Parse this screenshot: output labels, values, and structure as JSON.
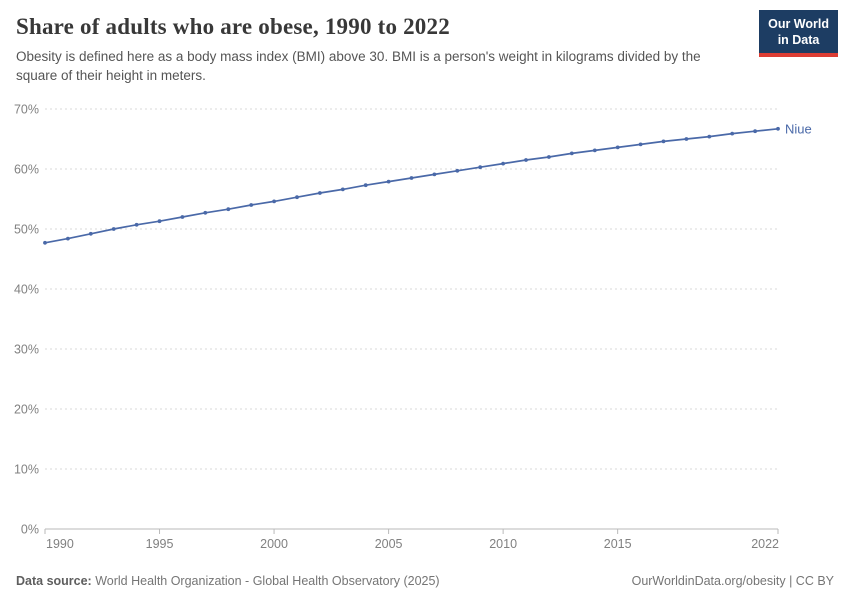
{
  "header": {
    "title": "Share of adults who are obese, 1990 to 2022",
    "subtitle": "Obesity is defined here as a body mass index (BMI) above 30. BMI is a person's weight in kilograms divided by the square of their height in meters."
  },
  "logo": {
    "line1": "Our World",
    "line2": "in Data"
  },
  "chart_data": {
    "type": "line",
    "title": "Share of adults who are obese, 1990 to 2022",
    "x": [
      1990,
      1991,
      1992,
      1993,
      1994,
      1995,
      1996,
      1997,
      1998,
      1999,
      2000,
      2001,
      2002,
      2003,
      2004,
      2005,
      2006,
      2007,
      2008,
      2009,
      2010,
      2011,
      2012,
      2013,
      2014,
      2015,
      2016,
      2017,
      2018,
      2019,
      2020,
      2021,
      2022
    ],
    "series": [
      {
        "name": "Niue",
        "values": [
          47.7,
          48.4,
          49.2,
          50.0,
          50.7,
          51.3,
          52.0,
          52.7,
          53.3,
          54.0,
          54.6,
          55.3,
          56.0,
          56.6,
          57.3,
          57.9,
          58.5,
          59.1,
          59.7,
          60.3,
          60.9,
          61.5,
          62.0,
          62.6,
          63.1,
          63.6,
          64.1,
          64.6,
          65.0,
          65.4,
          65.9,
          66.3,
          66.7
        ]
      }
    ],
    "xlim": [
      1990,
      2022
    ],
    "ylim": [
      0,
      70
    ],
    "y_ticks": [
      {
        "value": 0,
        "label": "0%"
      },
      {
        "value": 10,
        "label": "10%"
      },
      {
        "value": 20,
        "label": "20%"
      },
      {
        "value": 30,
        "label": "30%"
      },
      {
        "value": 40,
        "label": "40%"
      },
      {
        "value": 50,
        "label": "50%"
      },
      {
        "value": 60,
        "label": "60%"
      },
      {
        "value": 70,
        "label": "70%"
      }
    ],
    "x_ticks": [
      {
        "value": 1990,
        "label": "1990"
      },
      {
        "value": 1995,
        "label": "1995"
      },
      {
        "value": 2000,
        "label": "2000"
      },
      {
        "value": 2005,
        "label": "2005"
      },
      {
        "value": 2010,
        "label": "2010"
      },
      {
        "value": 2015,
        "label": "2015"
      },
      {
        "value": 2022,
        "label": "2022"
      }
    ],
    "grid": "horizontal-dashed",
    "legend_position": "end-of-line-label"
  },
  "footer": {
    "source_label": "Data source:",
    "source_text": "World Health Organization - Global Health Observatory (2025)",
    "credit": "OurWorldinData.org/obesity | CC BY"
  },
  "colors": {
    "line": "#4a69a8",
    "entity_label": "#4a69a8",
    "grid": "#d9d9d9",
    "axis": "#bababa",
    "tick_label": "#818181",
    "logo_bg": "#1d3d63",
    "logo_accent": "#dc3d34"
  }
}
